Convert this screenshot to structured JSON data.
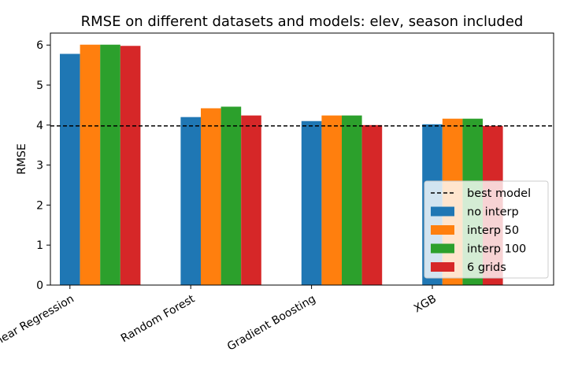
{
  "chart_data": {
    "type": "bar",
    "title": "RMSE on different datasets and models: elev, season included",
    "xlabel": "",
    "ylabel": "RMSE",
    "ylim": [
      0,
      6.3
    ],
    "yticks": [
      0,
      1,
      2,
      3,
      4,
      5,
      6
    ],
    "categories": [
      "Linear Regression",
      "Random Forest",
      "Gradient Boosting",
      "XGB"
    ],
    "series": [
      {
        "name": "no interp",
        "color": "#1f77b4",
        "values": [
          5.78,
          4.2,
          4.1,
          4.02
        ]
      },
      {
        "name": "interp 50",
        "color": "#ff7f0e",
        "values": [
          6.01,
          4.42,
          4.24,
          4.16
        ]
      },
      {
        "name": "interp 100",
        "color": "#2ca02c",
        "values": [
          6.01,
          4.46,
          4.24,
          4.16
        ]
      },
      {
        "name": "6 grids",
        "color": "#d62728",
        "values": [
          5.98,
          4.24,
          4.0,
          3.98
        ]
      }
    ],
    "reference_line": {
      "name": "best model",
      "value": 3.98,
      "style": "dashed",
      "color": "#000000"
    },
    "legend_position": "lower-right",
    "grid": false
  }
}
